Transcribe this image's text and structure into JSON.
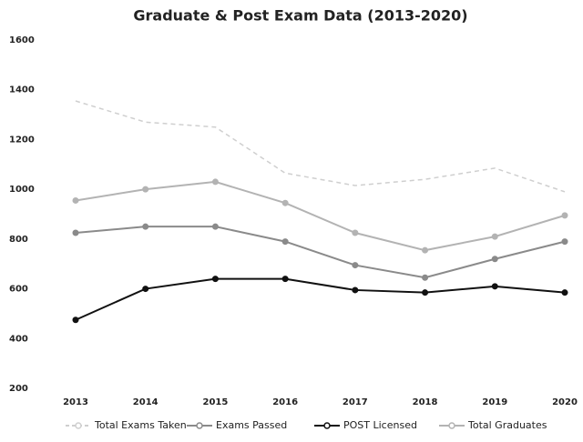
{
  "chart_data": {
    "type": "line",
    "title": "Graduate & Post Exam Data  (2013-2020)",
    "categories": [
      "2013",
      "2014",
      "2015",
      "2016",
      "2017",
      "2018",
      "2019",
      "2020"
    ],
    "series": [
      {
        "name": "Total Exams Taken",
        "color": "#cfcfcf",
        "dashed": true,
        "values": [
          1355,
          1270,
          1250,
          1065,
          1015,
          1040,
          1085,
          990
        ]
      },
      {
        "name": "Exams Passed",
        "color": "#8a8a8a",
        "values": [
          825,
          850,
          850,
          790,
          695,
          645,
          720,
          790
        ]
      },
      {
        "name": "POST Licensed",
        "color": "#111111",
        "values": [
          475,
          600,
          640,
          640,
          595,
          585,
          610,
          585
        ]
      },
      {
        "name": "Total Graduates",
        "color": "#b3b3b3",
        "values": [
          955,
          1000,
          1030,
          945,
          825,
          755,
          810,
          895
        ]
      }
    ],
    "ylim": [
      200,
      1600
    ],
    "yticks": [
      200,
      400,
      600,
      800,
      1000,
      1200,
      1400,
      1600
    ],
    "grid": false,
    "legend": "bottom"
  }
}
